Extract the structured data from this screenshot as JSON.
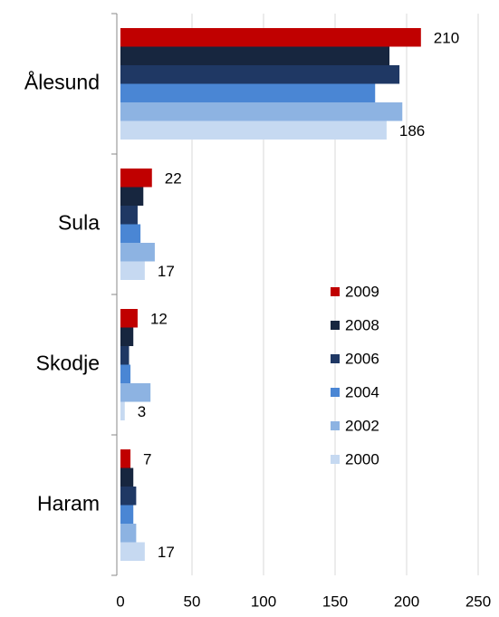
{
  "chart_data": {
    "type": "hbar",
    "categories": [
      "Ålesund",
      "Sula",
      "Skodje",
      "Haram"
    ],
    "series": [
      {
        "name": "2009",
        "color": "#c00000",
        "values": [
          210,
          22,
          12,
          7
        ],
        "labels": true
      },
      {
        "name": "2008",
        "color": "#17263f",
        "values": [
          188,
          16,
          9,
          9
        ]
      },
      {
        "name": "2006",
        "color": "#1f3864",
        "values": [
          195,
          12,
          6,
          11
        ]
      },
      {
        "name": "2004",
        "color": "#4a86d4",
        "values": [
          178,
          14,
          7,
          9
        ]
      },
      {
        "name": "2002",
        "color": "#8db3e2",
        "values": [
          197,
          24,
          21,
          11
        ]
      },
      {
        "name": "2000",
        "color": "#c6d9f1",
        "values": [
          186,
          17,
          3,
          17
        ],
        "labels": true
      }
    ],
    "xlim": [
      0,
      250
    ],
    "xticks": [
      0,
      50,
      100,
      150,
      200,
      250
    ],
    "grid": true,
    "legend": "right"
  }
}
